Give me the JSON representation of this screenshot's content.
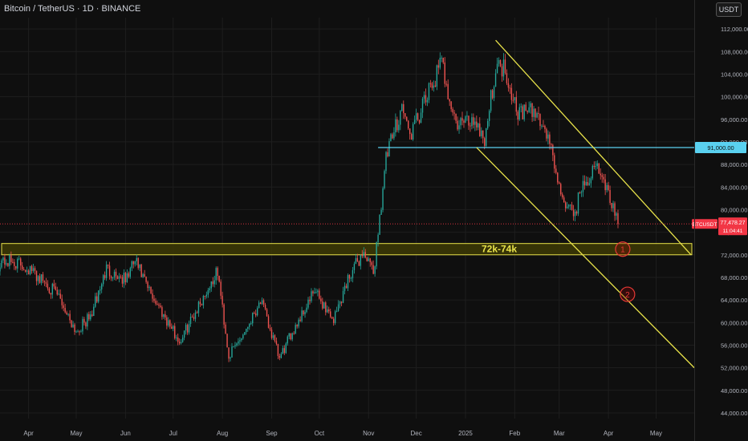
{
  "header": {
    "title": "Bitcoin / TetherUS · 1D · BINANCE",
    "currency": "USDT"
  },
  "colors": {
    "background": "#0f0f0f",
    "grid": "#1e1e1e",
    "up": "#26a69a",
    "down": "#ef5350",
    "channel": "#e8e24a",
    "resistance": "#5ad1f0",
    "zone_fill": "#3d3a05",
    "zone_border": "#e8e24a",
    "price_tag": "#f23645",
    "text": "#d1d4dc"
  },
  "chart_data": {
    "type": "candlestick",
    "symbol": "BTCUSDT",
    "ylim": [
      43000,
      114000
    ],
    "y_ticks": [
      44000,
      48000,
      52000,
      56000,
      60000,
      64000,
      68000,
      72000,
      76000,
      80000,
      84000,
      88000,
      92000,
      96000,
      100000,
      104000,
      108000,
      112000
    ],
    "y_tick_labels": [
      "44,000.00",
      "48,000.00",
      "52,000.00",
      "56,000.00",
      "60,000.00",
      "64,000.00",
      "68,000.00",
      "72,000.00",
      "76,000.00",
      "80,000.00",
      "84,000.00",
      "88,000.00",
      "92,000.00",
      "96,000.00",
      "100,000.00",
      "104,000.00",
      "108,000.00",
      "112,000.00"
    ],
    "x_ticks": [
      "Apr",
      "May",
      "Jun",
      "Jul",
      "Aug",
      "Sep",
      "Oct",
      "Nov",
      "Dec",
      "2025",
      "Feb",
      "Mar",
      "Apr",
      "May"
    ],
    "x_tick_dates": [
      "2024-04-01",
      "2024-05-01",
      "2024-06-01",
      "2024-07-01",
      "2024-08-01",
      "2024-09-01",
      "2024-10-01",
      "2024-11-01",
      "2024-12-01",
      "2025-01-01",
      "2025-02-01",
      "2025-03-01",
      "2025-04-01",
      "2025-05-01"
    ],
    "xlim": [
      "2024-03-14",
      "2025-05-25"
    ],
    "series": [
      {
        "name": "BTCUSDT",
        "closes": [
          [
            "2024-03-14",
            71000
          ],
          [
            "2024-03-25",
            70500
          ],
          [
            "2024-04-01",
            69500
          ],
          [
            "2024-04-12",
            67000
          ],
          [
            "2024-04-20",
            64500
          ],
          [
            "2024-05-01",
            58500
          ],
          [
            "2024-05-10",
            61000
          ],
          [
            "2024-05-20",
            69500
          ],
          [
            "2024-06-01",
            67500
          ],
          [
            "2024-06-07",
            71000
          ],
          [
            "2024-06-15",
            66000
          ],
          [
            "2024-06-25",
            61500
          ],
          [
            "2024-07-05",
            56500
          ],
          [
            "2024-07-15",
            62000
          ],
          [
            "2024-07-29",
            69000
          ],
          [
            "2024-08-05",
            54000
          ],
          [
            "2024-08-15",
            58500
          ],
          [
            "2024-08-25",
            64000
          ],
          [
            "2024-09-06",
            53500
          ],
          [
            "2024-09-15",
            59000
          ],
          [
            "2024-09-28",
            65500
          ],
          [
            "2024-10-10",
            60500
          ],
          [
            "2024-10-20",
            68500
          ],
          [
            "2024-10-29",
            72500
          ],
          [
            "2024-11-04",
            68500
          ],
          [
            "2024-11-12",
            89000
          ],
          [
            "2024-11-22",
            98500
          ],
          [
            "2024-11-27",
            93000
          ],
          [
            "2024-12-05",
            98000
          ],
          [
            "2024-12-17",
            106000
          ],
          [
            "2024-12-26",
            95000
          ],
          [
            "2025-01-07",
            96000
          ],
          [
            "2025-01-13",
            92500
          ],
          [
            "2025-01-20",
            105000
          ],
          [
            "2025-01-25",
            105500
          ],
          [
            "2025-02-03",
            97500
          ],
          [
            "2025-02-15",
            97000
          ],
          [
            "2025-02-24",
            91500
          ],
          [
            "2025-02-28",
            84000
          ],
          [
            "2025-03-10",
            78500
          ],
          [
            "2025-03-15",
            84000
          ],
          [
            "2025-03-25",
            87500
          ],
          [
            "2025-04-01",
            83000
          ],
          [
            "2025-04-07",
            77478.27
          ]
        ]
      }
    ],
    "price_tag": {
      "symbol": "BTCUSDT",
      "price": "77,478.27",
      "countdown": "11:04:41",
      "value": 77478.27
    },
    "resistance_level": {
      "value": 91000,
      "label": "91,000.00",
      "from": "2024-11-07"
    },
    "support_zone": {
      "low": 72000,
      "high": 74000,
      "label": "72k-74k"
    },
    "channel": {
      "upper": [
        [
          "2025-01-20",
          110000
        ],
        [
          "2025-05-23",
          72000
        ]
      ],
      "lower": [
        [
          "2025-01-08",
          91000
        ],
        [
          "2025-05-25",
          52000
        ]
      ]
    },
    "markers": [
      {
        "label": "1",
        "date": "2025-04-10",
        "value": 73000
      },
      {
        "label": "2",
        "date": "2025-04-13",
        "value": 65000
      }
    ]
  }
}
